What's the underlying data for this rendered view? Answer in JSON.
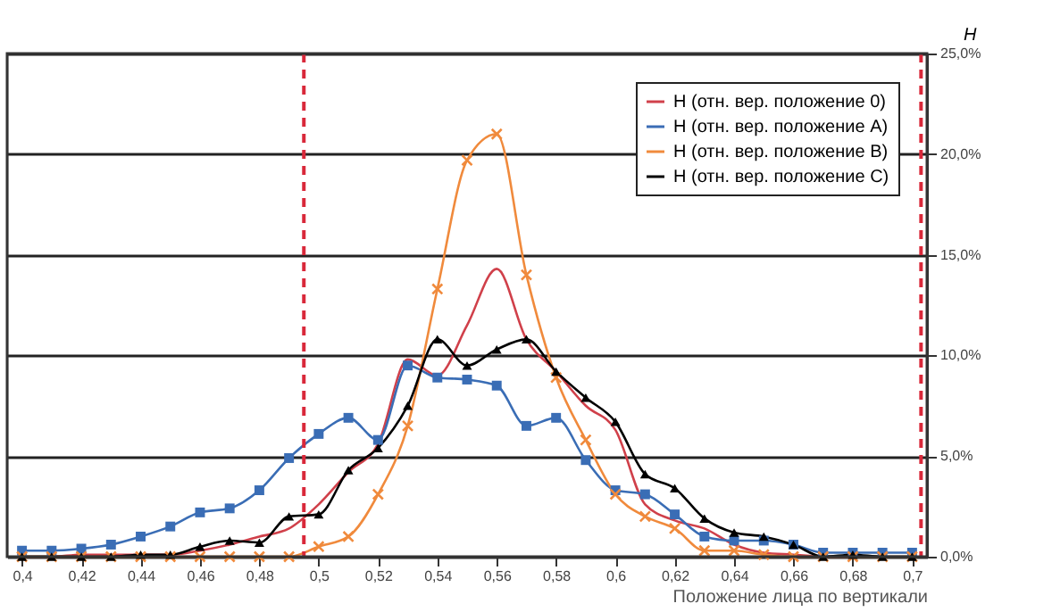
{
  "chart_data": {
    "type": "line",
    "xlabel": "Положение лица по вертикали",
    "ylabel": "H",
    "x": [
      0.4,
      0.41,
      0.42,
      0.43,
      0.44,
      0.45,
      0.46,
      0.47,
      0.48,
      0.49,
      0.5,
      0.51,
      0.52,
      0.53,
      0.54,
      0.55,
      0.56,
      0.57,
      0.58,
      0.59,
      0.6,
      0.61,
      0.62,
      0.63,
      0.64,
      0.65,
      0.66,
      0.67,
      0.68,
      0.69,
      0.7
    ],
    "series": [
      {
        "name": "H (отн. вер. положение 0)",
        "color": "#d0404a",
        "marker": "none",
        "values": [
          0,
          0,
          0.1,
          0.1,
          0.1,
          0.1,
          0.3,
          0.6,
          1.0,
          1.4,
          2.6,
          4.2,
          5.6,
          9.8,
          9.0,
          11.5,
          14.3,
          10.8,
          9.2,
          7.5,
          6.3,
          2.6,
          1.8,
          1.4,
          0.6,
          0.2,
          0.1,
          0,
          0,
          null,
          null
        ]
      },
      {
        "name": "H (отн. вер. положение A)",
        "color": "#3a6db5",
        "marker": "square",
        "values": [
          0.3,
          0.3,
          0.4,
          0.6,
          1.0,
          1.5,
          2.2,
          2.4,
          3.3,
          4.9,
          6.1,
          6.9,
          5.8,
          9.5,
          8.9,
          8.8,
          8.5,
          6.5,
          6.9,
          4.8,
          3.3,
          3.1,
          2.1,
          1.0,
          0.8,
          0.8,
          0.6,
          0.2,
          0.2,
          0.2,
          0.2
        ]
      },
      {
        "name": "H (отн. вер. положение B)",
        "color": "#f08a3c",
        "marker": "cross",
        "values": [
          0,
          0,
          0,
          0,
          0,
          0,
          0,
          0,
          0,
          0,
          0.5,
          1.0,
          3.1,
          6.5,
          13.3,
          19.7,
          21.0,
          14.0,
          8.9,
          5.8,
          3.1,
          2.0,
          1.4,
          0.3,
          0.3,
          0.1,
          0,
          0,
          0,
          0,
          0
        ]
      },
      {
        "name": "H (отн. вер. положение C)",
        "color": "#000000",
        "marker": "triangle",
        "values": [
          0,
          0,
          0,
          0,
          0.1,
          0.1,
          0.5,
          0.8,
          0.7,
          2.0,
          2.1,
          4.3,
          5.4,
          7.5,
          10.8,
          9.5,
          10.3,
          10.8,
          9.2,
          7.9,
          6.7,
          4.1,
          3.4,
          1.9,
          1.2,
          1.0,
          0.6,
          0,
          0.1,
          0,
          0
        ]
      }
    ],
    "xlim": [
      0.395,
      0.705
    ],
    "xticks": [
      {
        "value": 0.4,
        "label": "0,4"
      },
      {
        "value": 0.42,
        "label": "0,42"
      },
      {
        "value": 0.44,
        "label": "0,44"
      },
      {
        "value": 0.46,
        "label": "0,46"
      },
      {
        "value": 0.48,
        "label": "0,48"
      },
      {
        "value": 0.5,
        "label": "0,5"
      },
      {
        "value": 0.52,
        "label": "0,52"
      },
      {
        "value": 0.54,
        "label": "0,54"
      },
      {
        "value": 0.56,
        "label": "0,56"
      },
      {
        "value": 0.58,
        "label": "0,58"
      },
      {
        "value": 0.6,
        "label": "0,6"
      },
      {
        "value": 0.62,
        "label": "0,62"
      },
      {
        "value": 0.64,
        "label": "0,64"
      },
      {
        "value": 0.66,
        "label": "0,66"
      },
      {
        "value": 0.68,
        "label": "0,68"
      },
      {
        "value": 0.7,
        "label": "0,7"
      }
    ],
    "ylim": [
      0,
      25
    ],
    "yticks": [
      {
        "value": 0,
        "label": "0,0%"
      },
      {
        "value": 5,
        "label": "5,0%"
      },
      {
        "value": 10,
        "label": "10,0%"
      },
      {
        "value": 15,
        "label": "15,0%"
      },
      {
        "value": 20,
        "label": "20,0%"
      },
      {
        "value": 25,
        "label": "25,0%"
      }
    ],
    "ref_lines": [
      {
        "axis": "x",
        "value": 0.495,
        "color": "#d9283a",
        "line_style": "dashed"
      },
      {
        "axis": "x",
        "value": 0.703,
        "color": "#d9283a",
        "line_style": "dashed"
      }
    ],
    "grid": "y",
    "legend": "top right",
    "line_style": "solid"
  }
}
